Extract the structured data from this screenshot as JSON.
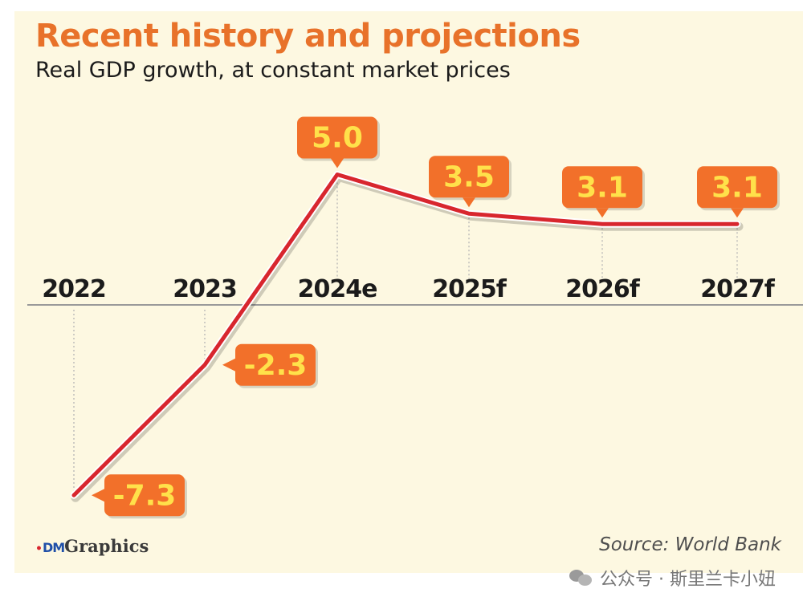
{
  "title": "Recent history and projections",
  "subtitle": "Real GDP growth, at constant market prices",
  "source": "Source:  World Bank",
  "logo": {
    "mark": "DM",
    "text": "Graphics"
  },
  "watermark": {
    "text": "公众号 · 斯里兰卡小妞",
    "icon": "wechat-icon"
  },
  "colors": {
    "accent": "#e8722a",
    "line": "#d8262e",
    "label_bg": "#f2702a",
    "label_text": "#ffe14a",
    "background": "#fdf8e1"
  },
  "chart_data": {
    "type": "line",
    "categories": [
      "2022",
      "2023",
      "2024e",
      "2025f",
      "2026f",
      "2027f"
    ],
    "values": [
      -7.3,
      -2.3,
      5.0,
      3.5,
      3.1,
      3.1
    ],
    "data_labels": [
      "-7.3",
      "-2.3",
      "5.0",
      "3.5",
      "3.1",
      "3.1"
    ],
    "title": "Recent history and projections",
    "subtitle": "Real GDP growth, at constant market prices",
    "ylim": [
      -7.3,
      5.0
    ],
    "grid": false,
    "legend": "none"
  }
}
